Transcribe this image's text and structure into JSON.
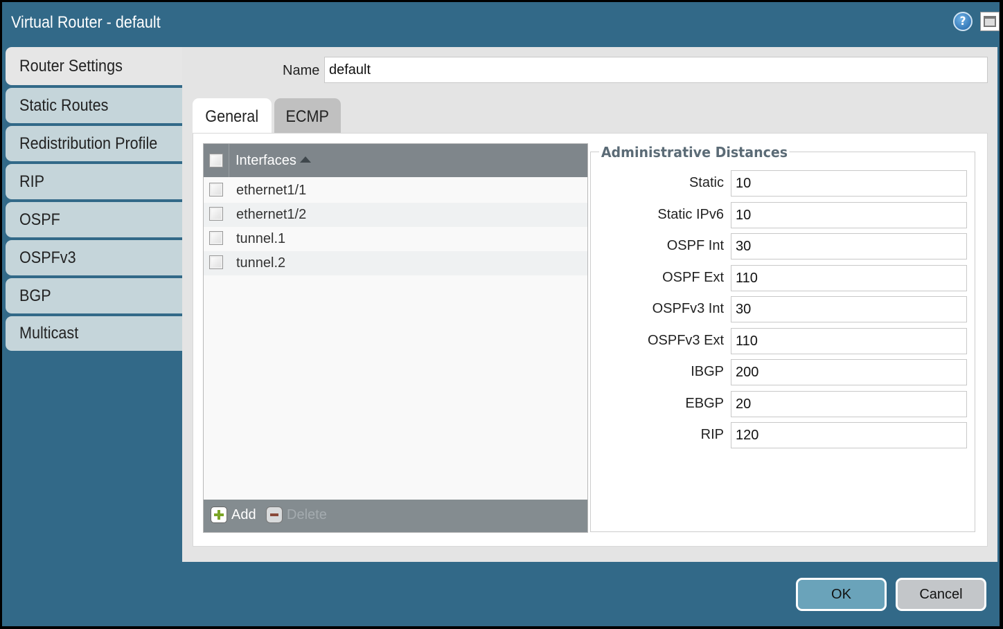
{
  "window": {
    "title": "Virtual Router - default",
    "help_icon": "help-icon",
    "maximize_icon": "maximize-icon"
  },
  "sidebar": {
    "items": [
      {
        "label": "Router Settings",
        "active": true
      },
      {
        "label": "Static Routes"
      },
      {
        "label": "Redistribution Profile"
      },
      {
        "label": "RIP"
      },
      {
        "label": "OSPF"
      },
      {
        "label": "OSPFv3"
      },
      {
        "label": "BGP"
      },
      {
        "label": "Multicast"
      }
    ]
  },
  "name_field": {
    "label": "Name",
    "value": "default"
  },
  "tabs": [
    {
      "label": "General",
      "active": true
    },
    {
      "label": "ECMP"
    }
  ],
  "interfaces": {
    "header": "Interfaces",
    "sort": "ascending",
    "rows": [
      "ethernet1/1",
      "ethernet1/2",
      "tunnel.1",
      "tunnel.2"
    ],
    "add_label": "Add",
    "delete_label": "Delete"
  },
  "admin_distances": {
    "title": "Administrative Distances",
    "fields": [
      {
        "label": "Static",
        "value": "10"
      },
      {
        "label": "Static IPv6",
        "value": "10"
      },
      {
        "label": "OSPF Int",
        "value": "30"
      },
      {
        "label": "OSPF Ext",
        "value": "110"
      },
      {
        "label": "OSPFv3 Int",
        "value": "30"
      },
      {
        "label": "OSPFv3 Ext",
        "value": "110"
      },
      {
        "label": "IBGP",
        "value": "200"
      },
      {
        "label": "EBGP",
        "value": "20"
      },
      {
        "label": "RIP",
        "value": "120"
      }
    ]
  },
  "buttons": {
    "ok": "OK",
    "cancel": "Cancel"
  },
  "colors": {
    "dialog": "#326988",
    "sidebar_inactive": "#c5d5da",
    "ok_button": "#6aa3ba",
    "cancel_button": "#c3c6c9"
  }
}
